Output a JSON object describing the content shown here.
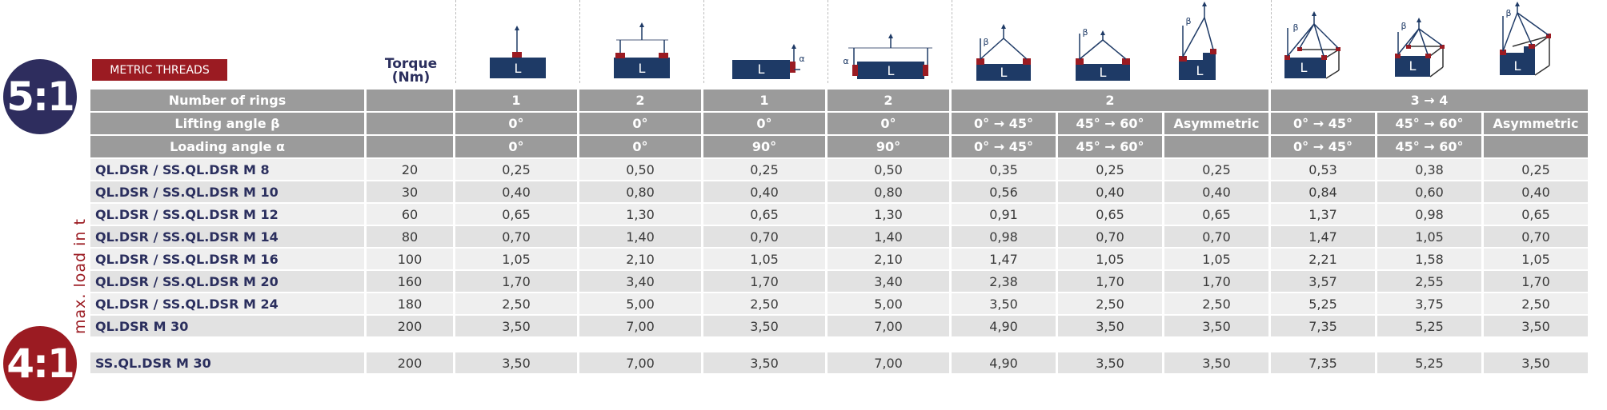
{
  "ratio_top": "5:1",
  "ratio_bottom": "4:1",
  "badge": "METRIC THREADS",
  "torque_label": [
    "Torque",
    "(Nm)"
  ],
  "side_label": "max. load in t",
  "icon_glyphs": {
    "load": "L",
    "beta": "β",
    "alpha": "α"
  },
  "icons": [
    "single-vertical-lift",
    "two-ring-spreader-lift",
    "single-side-lift",
    "two-ring-side-spreader-lift",
    "two-leg-sling-0-45",
    "two-leg-sling-45-60",
    "two-leg-asymmetric",
    "four-leg-sling-0-45",
    "four-leg-sling-45-60",
    "four-leg-asymmetric"
  ],
  "headers": {
    "rings": {
      "label": "Number of rings",
      "cells": [
        {
          "v": "1",
          "span": 1
        },
        {
          "v": "2",
          "span": 1
        },
        {
          "v": "1",
          "span": 1
        },
        {
          "v": "2",
          "span": 1
        },
        {
          "v": "2",
          "span": 3
        },
        {
          "v": "3 → 4",
          "span": 3
        }
      ]
    },
    "lifting": {
      "label": "Lifting angle β",
      "cells": [
        "0°",
        "0°",
        "0°",
        "0°",
        "0° → 45°",
        "45° → 60°",
        "Asymmetric",
        "0° → 45°",
        "45° → 60°",
        "Asymmetric"
      ]
    },
    "loading": {
      "label": "Loading angle α",
      "cells": [
        "0°",
        "0°",
        "90°",
        "90°",
        "0° → 45°",
        "45° → 60°",
        "",
        "0° → 45°",
        "45° → 60°",
        ""
      ]
    }
  },
  "rows_5_1": [
    {
      "name": "QL.DSR / SS.QL.DSR M 8",
      "torque": "20",
      "values": [
        "0,25",
        "0,50",
        "0,25",
        "0,50",
        "0,35",
        "0,25",
        "0,25",
        "0,53",
        "0,38",
        "0,25"
      ]
    },
    {
      "name": "QL.DSR / SS.QL.DSR M 10",
      "torque": "30",
      "values": [
        "0,40",
        "0,80",
        "0,40",
        "0,80",
        "0,56",
        "0,40",
        "0,40",
        "0,84",
        "0,60",
        "0,40"
      ]
    },
    {
      "name": "QL.DSR / SS.QL.DSR M 12",
      "torque": "60",
      "values": [
        "0,65",
        "1,30",
        "0,65",
        "1,30",
        "0,91",
        "0,65",
        "0,65",
        "1,37",
        "0,98",
        "0,65"
      ]
    },
    {
      "name": "QL.DSR / SS.QL.DSR M 14",
      "torque": "80",
      "values": [
        "0,70",
        "1,40",
        "0,70",
        "1,40",
        "0,98",
        "0,70",
        "0,70",
        "1,47",
        "1,05",
        "0,70"
      ]
    },
    {
      "name": "QL.DSR / SS.QL.DSR M 16",
      "torque": "100",
      "values": [
        "1,05",
        "2,10",
        "1,05",
        "2,10",
        "1,47",
        "1,05",
        "1,05",
        "2,21",
        "1,58",
        "1,05"
      ]
    },
    {
      "name": "QL.DSR / SS.QL.DSR M 20",
      "torque": "160",
      "values": [
        "1,70",
        "3,40",
        "1,70",
        "3,40",
        "2,38",
        "1,70",
        "1,70",
        "3,57",
        "2,55",
        "1,70"
      ]
    },
    {
      "name": "QL.DSR / SS.QL.DSR M 24",
      "torque": "180",
      "values": [
        "2,50",
        "5,00",
        "2,50",
        "5,00",
        "3,50",
        "2,50",
        "2,50",
        "5,25",
        "3,75",
        "2,50"
      ]
    },
    {
      "name": "QL.DSR M 30",
      "torque": "200",
      "values": [
        "3,50",
        "7,00",
        "3,50",
        "7,00",
        "4,90",
        "3,50",
        "3,50",
        "7,35",
        "5,25",
        "3,50"
      ]
    }
  ],
  "rows_4_1": [
    {
      "name": "SS.QL.DSR M 30",
      "torque": "200",
      "values": [
        "3,50",
        "7,00",
        "3,50",
        "7,00",
        "4,90",
        "3,50",
        "3,50",
        "7,35",
        "5,25",
        "3,50"
      ]
    }
  ],
  "colors": {
    "navy": "#2e2d5e",
    "red": "#9b1b22",
    "header_gray": "#9b9b9b",
    "icon_blue": "#1e3a66"
  }
}
